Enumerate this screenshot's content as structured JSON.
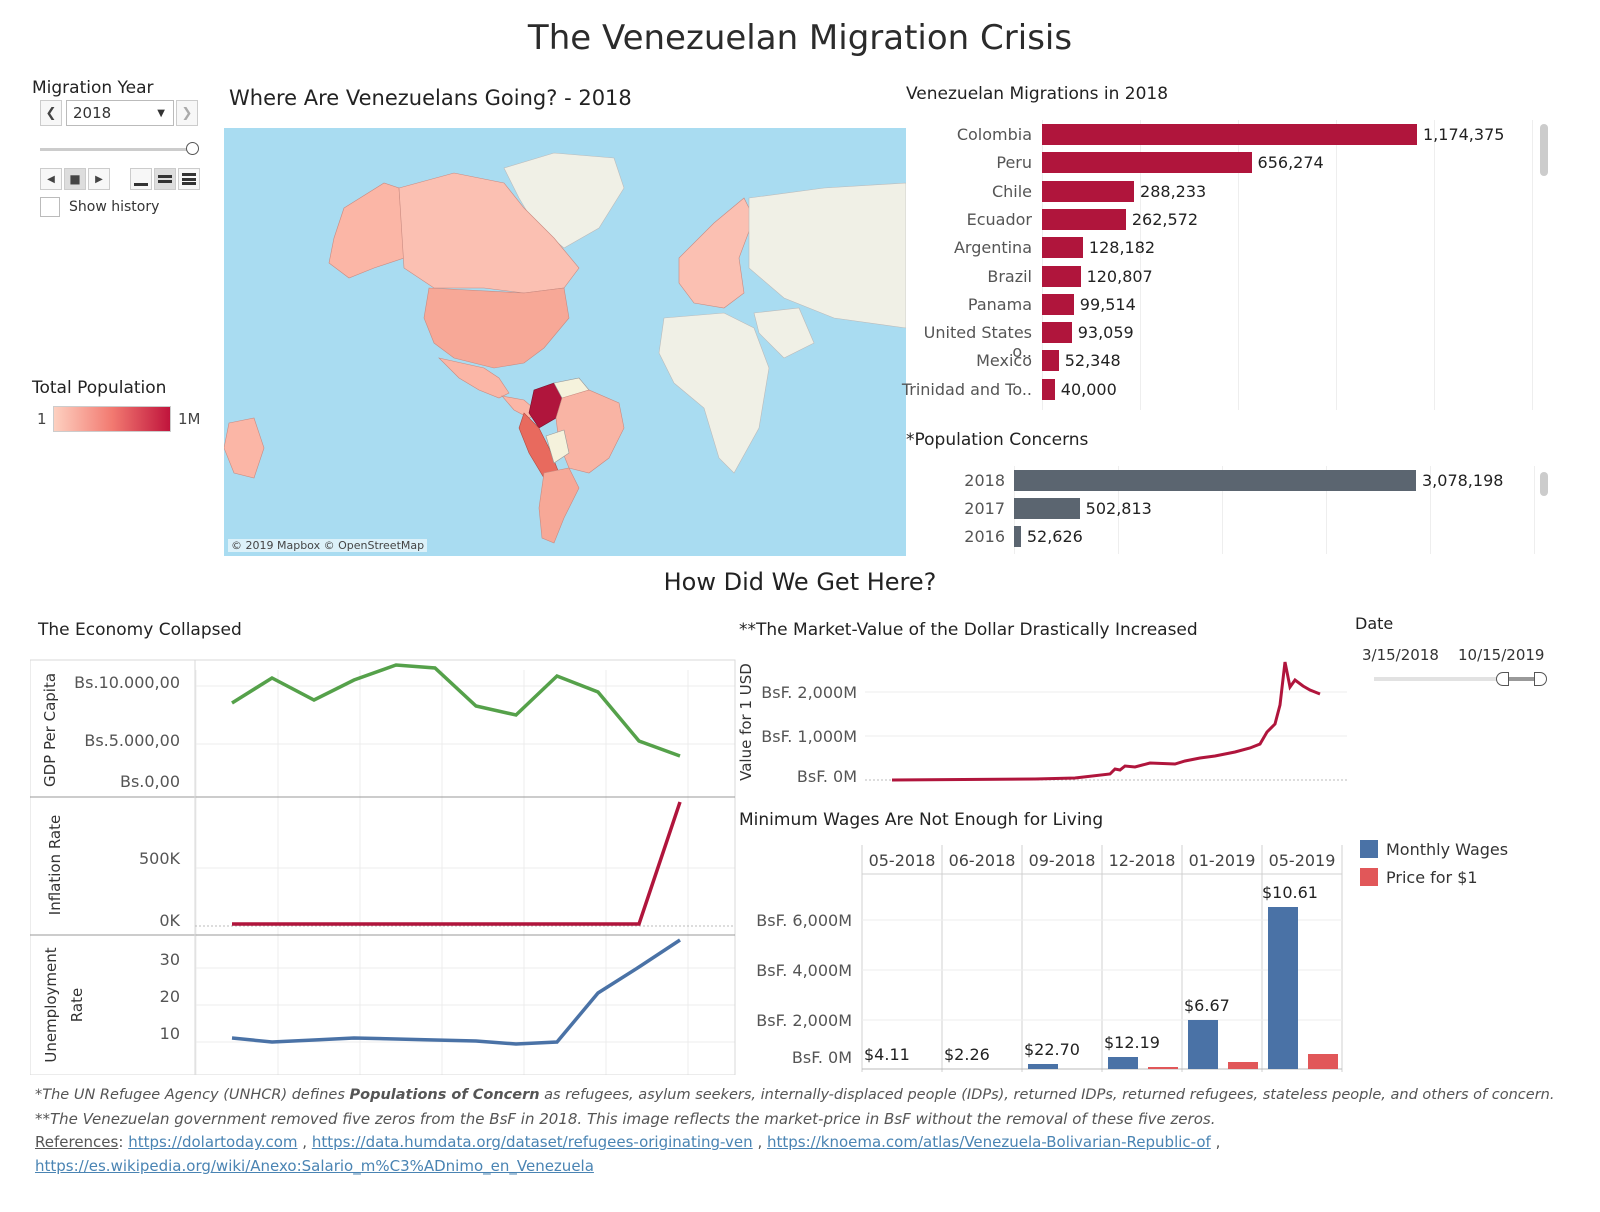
{
  "title": "The Venezuelan Migration Crisis",
  "controls": {
    "migration_year_label": "Migration Year",
    "year_value": "2018",
    "show_history_label": "Show history"
  },
  "map": {
    "title": "Where Are Venezuelans Going? - 2018",
    "attribution": "© 2019 Mapbox © OpenStreetMap",
    "legend_title": "Total Population",
    "legend_min": "1",
    "legend_max": "1M"
  },
  "migrations": {
    "title": "Venezuelan Migrations in 2018",
    "color": "#b0153c",
    "rows": [
      {
        "label": "Colombia",
        "value_text": "1,174,375",
        "value": 1174375
      },
      {
        "label": "Peru",
        "value_text": "656,274",
        "value": 656274
      },
      {
        "label": "Chile",
        "value_text": "288,233",
        "value": 288233
      },
      {
        "label": "Ecuador",
        "value_text": "262,572",
        "value": 262572
      },
      {
        "label": "Argentina",
        "value_text": "128,182",
        "value": 128182
      },
      {
        "label": "Brazil",
        "value_text": "120,807",
        "value": 120807
      },
      {
        "label": "Panama",
        "value_text": "99,514",
        "value": 99514
      },
      {
        "label": "United States o..",
        "value_text": "93,059",
        "value": 93059
      },
      {
        "label": "Mexico",
        "value_text": "52,348",
        "value": 52348
      },
      {
        "label": "Trinidad and To..",
        "value_text": "40,000",
        "value": 40000
      }
    ]
  },
  "concerns": {
    "title": "*Population Concerns",
    "color": "#5b6570",
    "rows": [
      {
        "label": "2018",
        "value_text": "3,078,198",
        "value": 3078198
      },
      {
        "label": "2017",
        "value_text": "502,813",
        "value": 502813
      },
      {
        "label": "2016",
        "value_text": "52,626",
        "value": 52626
      }
    ]
  },
  "section2_title": "How Did We Get Here?",
  "economy": {
    "title": "The Economy Collapsed",
    "gdp_axis": "GDP Per Capita",
    "gdp_ticks": [
      "Bs.10.000,00",
      "Bs.5.000,00",
      "Bs.0,00"
    ],
    "inflation_axis": "Inflation Rate",
    "inflation_ticks": [
      "500K",
      "0K"
    ],
    "unemployment_axis": "Unemployment Rate",
    "unemployment_ticks": [
      "30",
      "20",
      "10"
    ],
    "gdp_color": "#55a14a",
    "inflation_color": "#b0153c",
    "unemployment_color": "#4a72a6"
  },
  "dollar": {
    "title": "**The Market-Value of the Dollar Drastically Increased",
    "y_axis": "Value for 1 USD",
    "ticks": [
      "BsF. 2,000M",
      "BsF. 1,000M",
      "BsF. 0M"
    ],
    "color": "#b0153c"
  },
  "date_filter": {
    "label": "Date",
    "start": "3/15/2018",
    "end": "10/15/2019"
  },
  "wages": {
    "title": "Minimum Wages Are Not Enough for Living",
    "ticks": [
      "BsF. 6,000M",
      "BsF. 4,000M",
      "BsF. 2,000M",
      "BsF. 0M"
    ],
    "legend": [
      {
        "label": "Monthly Wages",
        "color": "#4a72a6"
      },
      {
        "label": "Price for $1",
        "color": "#e15759"
      }
    ],
    "months": [
      {
        "label": "05-2018",
        "value_text": "$4.11"
      },
      {
        "label": "06-2018",
        "value_text": "$2.26"
      },
      {
        "label": "09-2018",
        "value_text": "$22.70"
      },
      {
        "label": "12-2018",
        "value_text": "$12.19"
      },
      {
        "label": "01-2019",
        "value_text": "$6.67"
      },
      {
        "label": "05-2019",
        "value_text": "$10.61"
      }
    ]
  },
  "footer": {
    "note1_prefix": "*The UN Refugee Agency (UNHCR) defines ",
    "note1_bold": "Populations of Concern",
    "note1_suffix": " as refugees, asylum seekers, internally-displaced people (IDPs), returned IDPs, returned refugees, stateless people, and others of concern.",
    "note2": "**The Venezuelan government removed five zeros from the BsF in 2018. This image reflects the market-price in BsF without the removal of these five zeros.",
    "references_label": "References",
    "links": [
      "https://dolartoday.com",
      "https://data.humdata.org/dataset/refugees-originating-ven",
      "https://knoema.com/atlas/Venezuela-Bolivarian-Republic-of",
      "https://es.wikipedia.org/wiki/Anexo:Salario_m%C3%ADnimo_en_Venezuela"
    ]
  }
}
